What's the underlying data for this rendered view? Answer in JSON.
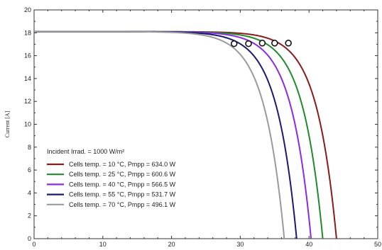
{
  "chart_data": {
    "type": "line",
    "xlabel": "",
    "ylabel": "Current [A]",
    "xlim": [
      0,
      50
    ],
    "ylim": [
      0,
      20
    ],
    "x_ticks": [
      "0",
      "10",
      "20",
      "30",
      "40",
      "50"
    ],
    "y_ticks": [
      "0",
      "2",
      "4",
      "6",
      "8",
      "10",
      "12",
      "14",
      "16",
      "18",
      "20"
    ],
    "legend_title": "Incident Irrad. = 1000 W/m²",
    "legend_position": "bottom-left",
    "isc": 18.1,
    "series": [
      {
        "name": "Cells temp. = 10 °C,  Pmpp = 634.0 W",
        "color": "#8b1a1a",
        "voc": 44.0,
        "mpp": [
          37.0,
          17.1
        ]
      },
      {
        "name": "Cells temp. = 25 °C,  Pmpp = 600.6 W",
        "color": "#1e8c2a",
        "voc": 42.0,
        "mpp": [
          35.0,
          17.1
        ]
      },
      {
        "name": "Cells temp. = 40 °C,  Pmpp = 566.5 W",
        "color": "#8a2be2",
        "voc": 40.3,
        "mpp": [
          33.2,
          17.1
        ]
      },
      {
        "name": "Cells temp. = 55 °C,  Pmpp = 531.7 W",
        "color": "#1a1a6e",
        "voc": 38.2,
        "mpp": [
          31.2,
          17.05
        ]
      },
      {
        "name": "Cells temp. = 70 °C,  Pmpp = 496.1 W",
        "color": "#9a9a9a",
        "voc": 36.4,
        "mpp": [
          29.1,
          17.05
        ]
      }
    ]
  }
}
